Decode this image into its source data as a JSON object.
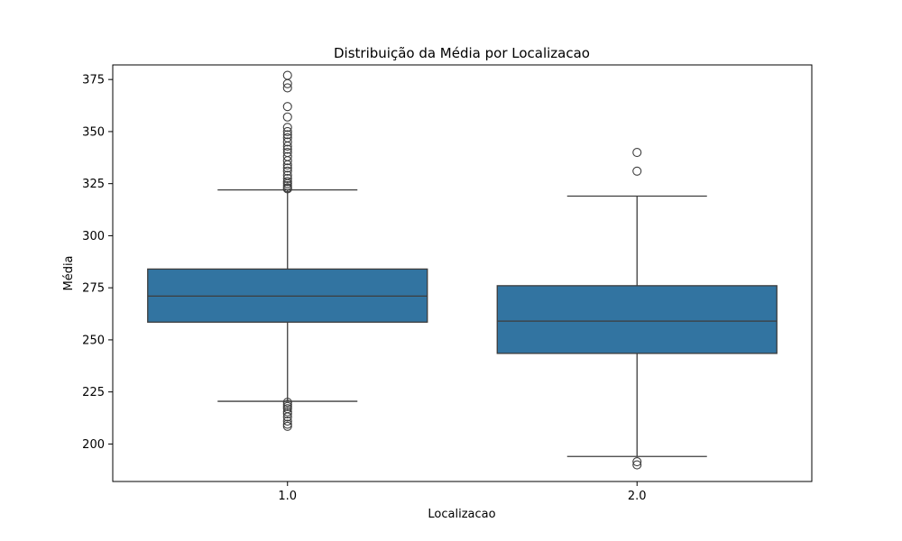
{
  "chart_data": {
    "type": "boxplot",
    "title": "Distribuição da Média por Localizacao",
    "xlabel": "Localizacao",
    "ylabel": "Média",
    "ylim": [
      182,
      382
    ],
    "yticks": [
      200,
      225,
      250,
      275,
      300,
      325,
      350,
      375
    ],
    "ytick_labels": [
      "200",
      "225",
      "250",
      "275",
      "300",
      "325",
      "350",
      "375"
    ],
    "categories": [
      "1.0",
      "2.0"
    ],
    "grid": false,
    "box_color": "#3274a1",
    "line_color": "#3d3d3d",
    "boxes": [
      {
        "category": "1.0",
        "whisker_low": 220.5,
        "q1": 258.5,
        "median": 271,
        "q3": 284,
        "whisker_high": 322,
        "outliers": [
          208.5,
          209.5,
          211,
          213,
          214.5,
          215.5,
          217,
          218,
          219,
          220,
          322.5,
          323,
          324,
          325,
          326,
          327.5,
          329,
          331,
          332.5,
          334,
          336,
          338,
          340,
          341.5,
          343,
          345,
          347,
          348.5,
          350,
          352,
          357,
          362,
          371,
          373,
          377
        ]
      },
      {
        "category": "2.0",
        "whisker_low": 194,
        "q1": 243.5,
        "median": 259,
        "q3": 276,
        "whisker_high": 319,
        "outliers": [
          190,
          191.5,
          331,
          340
        ]
      }
    ]
  }
}
